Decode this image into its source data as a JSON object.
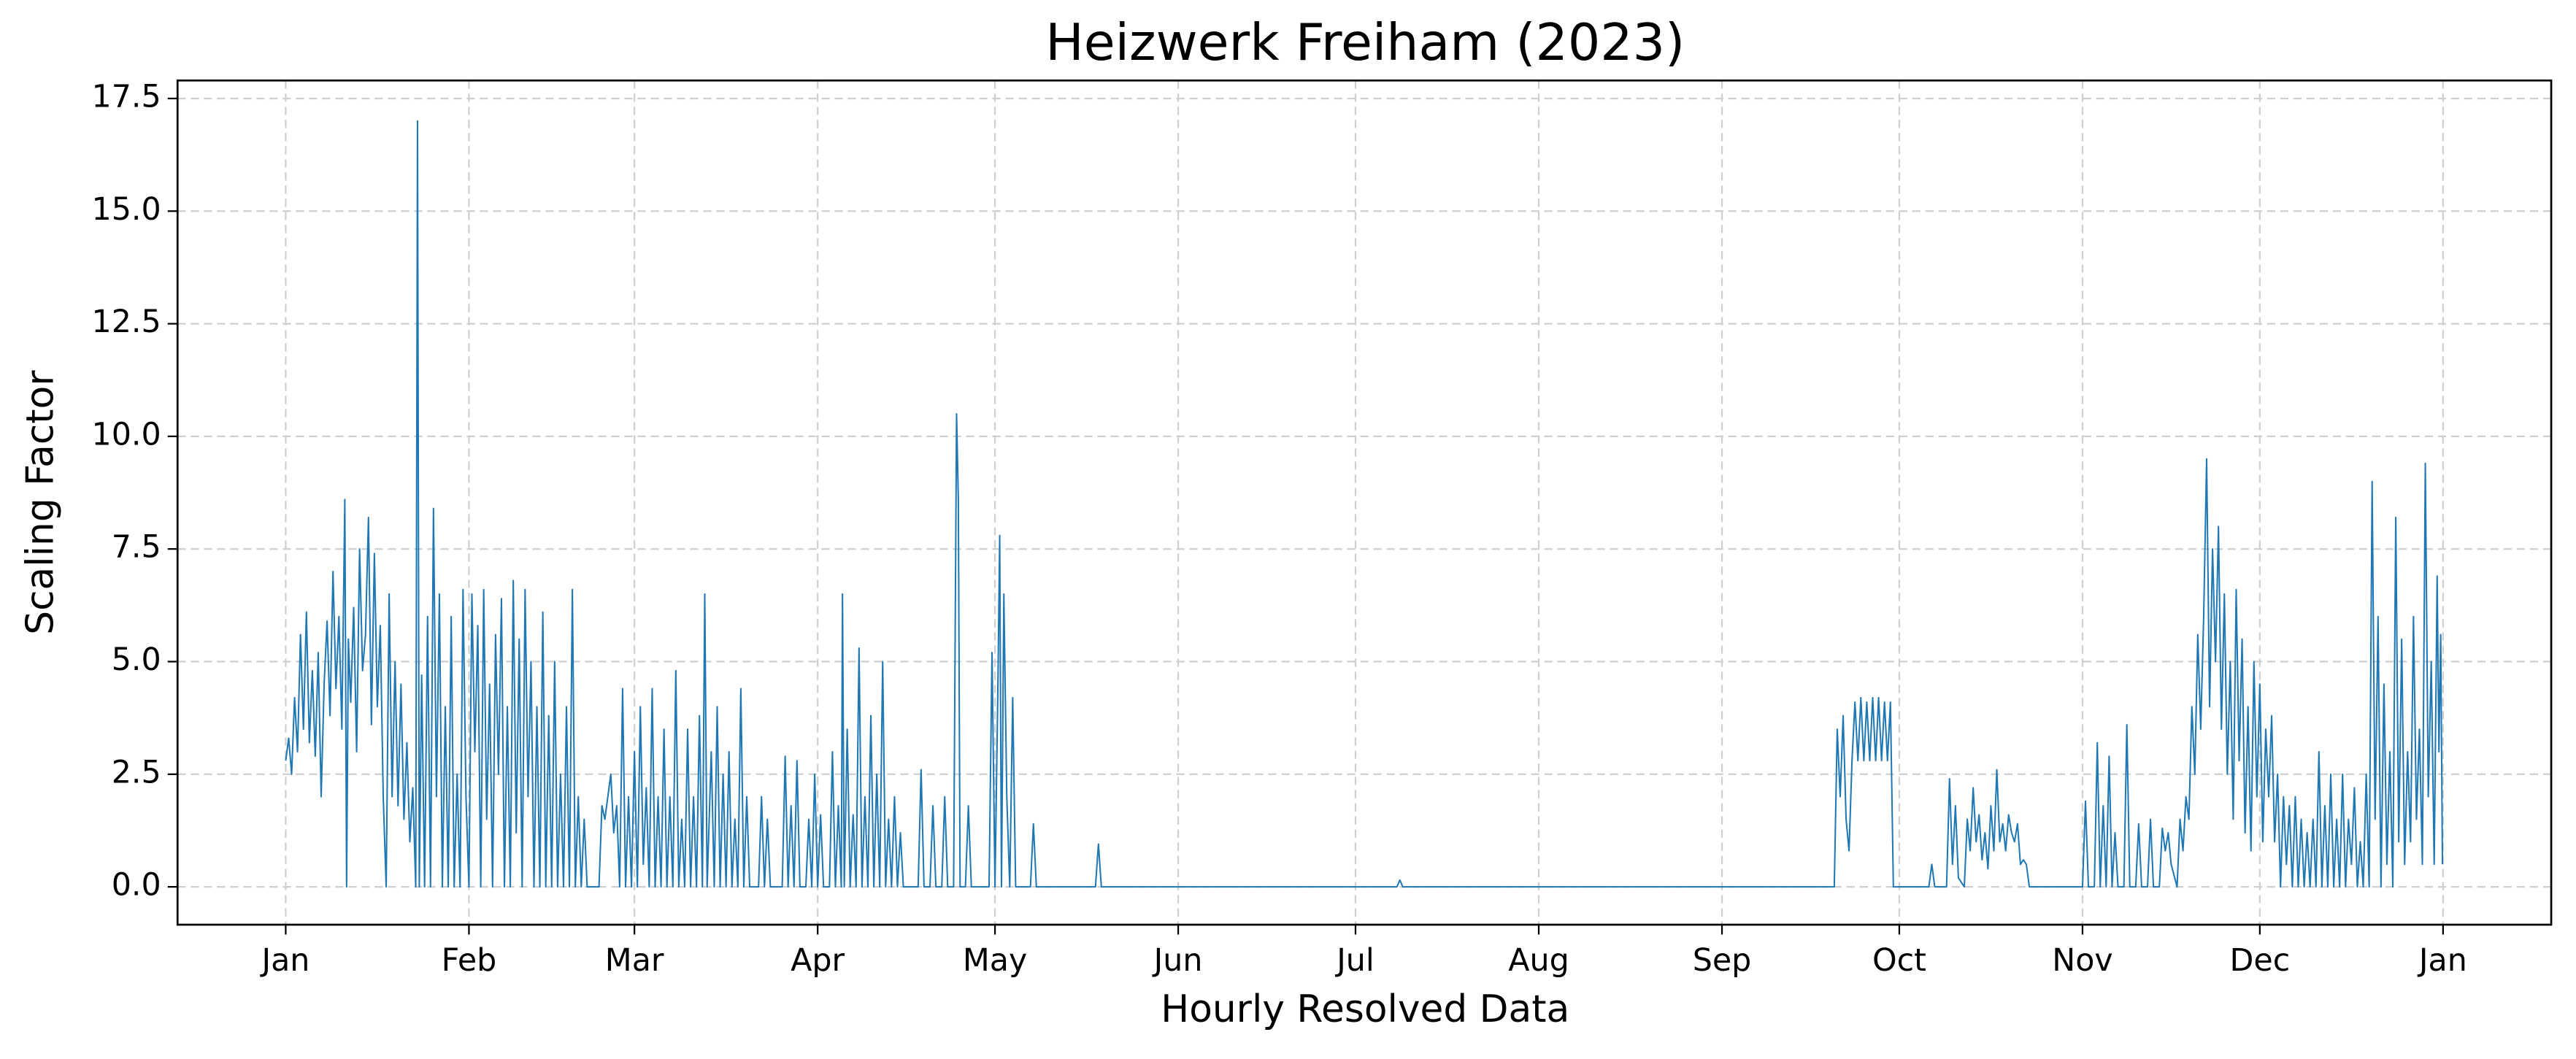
{
  "chart_data": {
    "type": "line",
    "title": "Heizwerk Freiham (2023)",
    "x_label": "Hourly Resolved Data",
    "y_label": "Scaling Factor",
    "color": "#1f77b4",
    "grid": true,
    "xlim": [
      -18.3,
      383.3
    ],
    "ylim": [
      -0.84,
      17.9
    ],
    "xticks": [
      {
        "value": 0,
        "label": "Jan"
      },
      {
        "value": 31,
        "label": "Feb"
      },
      {
        "value": 59,
        "label": "Mar"
      },
      {
        "value": 90,
        "label": "Apr"
      },
      {
        "value": 120,
        "label": "May"
      },
      {
        "value": 151,
        "label": "Jun"
      },
      {
        "value": 181,
        "label": "Jul"
      },
      {
        "value": 212,
        "label": "Aug"
      },
      {
        "value": 243,
        "label": "Sep"
      },
      {
        "value": 273,
        "label": "Oct"
      },
      {
        "value": 304,
        "label": "Nov"
      },
      {
        "value": 334,
        "label": "Dec"
      },
      {
        "value": 365,
        "label": "Jan"
      }
    ],
    "yticks": [
      {
        "value": 0,
        "label": "0.0"
      },
      2.5,
      {
        "value": 5,
        "label": "5.0"
      },
      7.5,
      {
        "value": 10,
        "label": "10.0"
      },
      12.5,
      {
        "value": 15,
        "label": "15.0"
      },
      17.5
    ],
    "x": [
      0,
      0.5,
      1,
      1.5,
      2,
      2.5,
      3,
      3.5,
      4,
      4.5,
      5,
      5.5,
      6,
      6.5,
      7,
      7.5,
      8,
      8.5,
      9,
      9.5,
      10,
      10.3,
      10.6,
      11,
      11.5,
      12,
      12.5,
      13,
      13.5,
      14,
      14.5,
      15,
      15.5,
      16,
      16.5,
      17,
      17.5,
      18,
      18.5,
      19,
      19.5,
      20,
      20.5,
      21,
      21.5,
      22,
      22.3,
      22.6,
      23,
      23.5,
      24,
      24.5,
      25,
      25.5,
      26,
      26.5,
      27,
      27.5,
      28,
      28.5,
      29,
      29.5,
      30,
      30.5,
      31,
      31.5,
      32,
      32.5,
      33,
      33.5,
      34,
      34.5,
      35,
      35.5,
      36,
      36.5,
      37,
      37.5,
      38,
      38.5,
      39,
      39.5,
      40,
      40.5,
      41,
      41.5,
      42,
      42.5,
      43,
      43.5,
      44,
      44.5,
      45,
      45.5,
      46,
      46.5,
      47,
      47.5,
      48,
      48.5,
      49,
      49.5,
      50,
      50.5,
      51,
      53,
      53.5,
      54,
      55,
      55.5,
      56,
      56.5,
      57,
      57.5,
      58,
      58.5,
      59,
      59.5,
      60,
      60.5,
      61,
      61.5,
      62,
      62.5,
      63,
      63.5,
      64,
      64.5,
      65,
      65.5,
      66,
      66.5,
      67,
      67.5,
      68,
      68.5,
      69,
      69.5,
      70,
      70.5,
      70.9,
      71.3,
      72,
      72.5,
      73,
      73.5,
      74,
      74.5,
      75,
      75.5,
      76,
      76.5,
      77,
      77.5,
      78,
      78.5,
      80,
      80.5,
      81,
      81.5,
      82,
      84,
      84.5,
      85,
      85.5,
      86,
      86.5,
      87,
      88,
      88.5,
      89,
      89.5,
      90,
      90.5,
      91,
      92,
      92.5,
      93,
      93.5,
      94,
      94.2,
      94.5,
      95,
      95.5,
      96,
      96.5,
      97,
      97.5,
      98,
      98.5,
      99,
      99.5,
      100,
      100.5,
      101,
      101.5,
      102,
      102.5,
      103,
      103.5,
      104,
      104.5,
      107,
      107.5,
      108,
      109,
      109.5,
      110,
      111,
      111.5,
      112,
      113,
      113.5,
      113.8,
      114.1,
      115,
      115.5,
      116,
      119,
      119.5,
      120,
      120.5,
      120.8,
      121.1,
      121.5,
      122,
      122.5,
      123,
      123.5,
      126,
      126.5,
      127,
      137,
      137.5,
      138,
      188,
      188.5,
      189,
      262,
      262.5,
      263,
      263.5,
      264,
      264.5,
      265,
      265.5,
      266,
      266.5,
      267,
      267.5,
      268,
      268.5,
      269,
      269.5,
      270,
      270.5,
      271,
      271.5,
      272,
      278,
      278.5,
      279,
      281,
      281.5,
      282,
      282.5,
      283,
      284,
      284.5,
      285,
      285.5,
      286,
      286.5,
      287,
      287.5,
      288,
      288.5,
      289,
      289.5,
      290,
      290.5,
      291,
      291.5,
      292,
      292.5,
      293,
      293.5,
      294,
      294.5,
      295,
      304,
      304.5,
      305,
      306,
      306.5,
      307,
      307.5,
      308,
      308.5,
      309,
      309.5,
      310,
      311,
      311.5,
      312,
      313,
      313.5,
      314,
      315,
      315.5,
      316,
      317,
      317.5,
      318,
      318.5,
      319,
      320,
      320.5,
      321,
      321.5,
      322,
      322.5,
      323,
      323.5,
      324,
      324.5,
      325,
      325.5,
      326,
      326.5,
      327,
      327.5,
      328,
      328.5,
      329,
      329.5,
      330,
      330.5,
      331,
      331.5,
      332,
      332.5,
      333,
      333.5,
      334,
      334.5,
      335,
      335.5,
      336,
      336.5,
      337,
      337.5,
      338,
      338.5,
      339,
      339.5,
      340,
      340.5,
      341,
      341.5,
      342,
      342.5,
      343,
      343.5,
      344,
      344.5,
      345,
      345.5,
      346,
      346.5,
      347,
      347.5,
      348,
      348.5,
      349,
      349.5,
      350,
      350.5,
      351,
      351.5,
      352,
      352.5,
      353,
      353.5,
      354,
      354.5,
      355,
      355.5,
      356,
      356.5,
      357,
      357.5,
      358,
      358.5,
      359,
      359.5,
      360,
      360.5,
      361,
      361.5,
      362,
      362.5,
      363,
      363.5,
      364,
      364.3,
      364.6,
      364.9
    ],
    "values": [
      2.8,
      3.3,
      2.5,
      4.2,
      3.0,
      5.6,
      3.5,
      6.1,
      3.2,
      4.8,
      2.9,
      5.2,
      2.0,
      4.5,
      5.9,
      3.8,
      7.0,
      4.4,
      6.0,
      3.5,
      8.6,
      0,
      5.5,
      4.1,
      6.2,
      3.0,
      7.5,
      4.8,
      5.6,
      8.2,
      3.6,
      7.4,
      4.0,
      5.8,
      2.0,
      0,
      6.5,
      2.0,
      5.0,
      1.8,
      4.5,
      1.5,
      3.2,
      1.0,
      2.2,
      0,
      17.0,
      0,
      4.7,
      0,
      6.0,
      0,
      8.4,
      2.0,
      6.5,
      0,
      4.0,
      0,
      6.0,
      0,
      2.5,
      0,
      6.6,
      2.0,
      0,
      6.5,
      3.0,
      5.8,
      0,
      6.6,
      1.5,
      4.5,
      0,
      5.6,
      2.5,
      6.4,
      0,
      4.0,
      0,
      6.8,
      1.2,
      5.5,
      0,
      6.6,
      2.0,
      5.0,
      0,
      4.0,
      0,
      6.1,
      0,
      3.8,
      0,
      5.0,
      0,
      2.5,
      0,
      4.0,
      0,
      6.6,
      0,
      2.0,
      0,
      1.5,
      0,
      0,
      1.8,
      1.5,
      2.5,
      1.2,
      1.8,
      0,
      4.4,
      0,
      2.0,
      0,
      3.0,
      0,
      4.0,
      0.5,
      2.2,
      0,
      4.4,
      0,
      2.0,
      0,
      3.5,
      0,
      2.0,
      0,
      4.8,
      0,
      1.5,
      0,
      3.5,
      0,
      2.0,
      0,
      3.8,
      0,
      6.5,
      0,
      3.0,
      0,
      4.0,
      0,
      2.5,
      0,
      3.0,
      0,
      1.5,
      0,
      4.4,
      0,
      2.0,
      0,
      0,
      2.0,
      0,
      1.5,
      0,
      0,
      2.9,
      0,
      1.8,
      0,
      2.8,
      0,
      0,
      1.5,
      0,
      2.5,
      0,
      1.6,
      0,
      0,
      3.0,
      0,
      1.8,
      0,
      6.5,
      0,
      3.5,
      0,
      1.6,
      0,
      5.3,
      0,
      2.0,
      0,
      3.8,
      0,
      2.5,
      0,
      5.0,
      0,
      1.5,
      0,
      2.0,
      0,
      1.2,
      0,
      0,
      2.6,
      0,
      0,
      1.8,
      0,
      0,
      2.0,
      0,
      0,
      10.5,
      8.6,
      0,
      0,
      1.8,
      0,
      0,
      5.2,
      0,
      4.5,
      7.8,
      0,
      6.5,
      2.0,
      0,
      4.2,
      0,
      0,
      1.4,
      0,
      0,
      0.95,
      0,
      0,
      0.15,
      0,
      0,
      3.5,
      2.0,
      3.8,
      1.5,
      0.8,
      2.8,
      4.1,
      2.8,
      4.2,
      2.8,
      4.1,
      2.8,
      4.2,
      2.8,
      4.2,
      2.8,
      4.1,
      2.8,
      4.1,
      0,
      0,
      0.5,
      0,
      0,
      2.4,
      0.5,
      1.8,
      0.2,
      0,
      1.5,
      0.8,
      2.2,
      1.0,
      1.6,
      0.6,
      1.2,
      0.4,
      1.8,
      0.8,
      2.6,
      1.0,
      1.4,
      0.8,
      1.6,
      1.2,
      1.0,
      1.4,
      0.5,
      0.6,
      0.5,
      0,
      0,
      1.9,
      0,
      0,
      3.2,
      0,
      1.8,
      0,
      2.9,
      0,
      1.2,
      0,
      0,
      3.6,
      0,
      0,
      1.4,
      0,
      0,
      1.5,
      0,
      0,
      1.3,
      0.8,
      1.2,
      0.5,
      0,
      1.5,
      0.8,
      2.0,
      1.5,
      4.0,
      2.5,
      5.6,
      3.5,
      6.0,
      9.5,
      4.0,
      7.5,
      5.0,
      8.0,
      3.5,
      6.5,
      2.5,
      5.0,
      1.5,
      6.6,
      2.8,
      5.5,
      1.2,
      4.0,
      0.8,
      5.0,
      2.0,
      4.5,
      1.0,
      3.5,
      2.0,
      3.8,
      1.0,
      2.5,
      0,
      2.0,
      0.5,
      1.8,
      0,
      2.0,
      0,
      1.5,
      0,
      1.2,
      0,
      1.5,
      0,
      3.0,
      0,
      1.8,
      0,
      2.5,
      0,
      1.5,
      0,
      2.5,
      0,
      1.5,
      0.5,
      2.2,
      0,
      1.0,
      0,
      2.5,
      0,
      9.0,
      1.5,
      6.0,
      0,
      4.5,
      0.5,
      3.0,
      0,
      8.2,
      1.0,
      5.5,
      0.5,
      3.0,
      1.0,
      6.0,
      1.5,
      3.5,
      0.5,
      9.4,
      2.0,
      5.0,
      0.5,
      6.9,
      3.0,
      5.6,
      0.5
    ]
  }
}
